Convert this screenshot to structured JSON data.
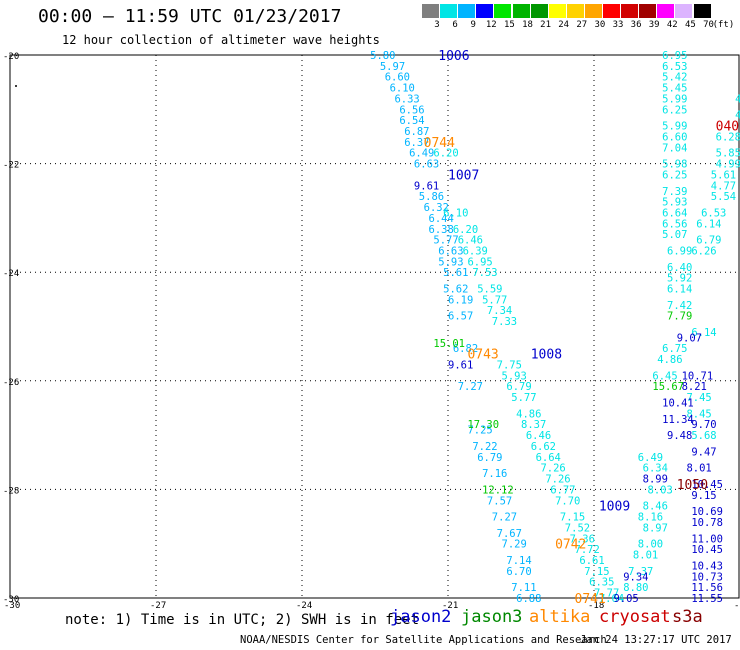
{
  "header": {
    "title": "00:00 – 11:59 UTC 01/23/2017",
    "subtitle": "12 hour collection of altimeter wave heights"
  },
  "colorbar": {
    "labels": [
      "3",
      "6",
      "9",
      "12",
      "15",
      "18",
      "21",
      "24",
      "27",
      "30",
      "33",
      "36",
      "39",
      "42",
      "45",
      "70"
    ],
    "unit": "(ft)",
    "colors": [
      "#7f7f7f",
      "#00e5e5",
      "#00b4ff",
      "#0000ff",
      "#00e600",
      "#00b400",
      "#009600",
      "#ffff00",
      "#ffd200",
      "#ffa500",
      "#ff0000",
      "#d20000",
      "#a00000",
      "#ff00ff",
      "#dcb4ff",
      "#000000"
    ]
  },
  "map": {
    "lat_labels": [
      "-20",
      "-22",
      "-24",
      "-26",
      "-28",
      "-30"
    ],
    "lon_labels": [
      "-30",
      "-27",
      "-24",
      "-21",
      "-18",
      "-15"
    ],
    "track_colors": {
      "jason2": "#0000cc",
      "jason3": "#008800",
      "altika": "#ff8800",
      "cryosat": "#cc0000",
      "s3a": "#880000"
    },
    "time_labels": [
      {
        "text": "1006",
        "sat": "jason2",
        "lon": -21.2,
        "lat": -20.0
      },
      {
        "text": "0744",
        "sat": "altika",
        "lon": -21.5,
        "lat": -21.6
      },
      {
        "text": "1007",
        "sat": "jason2",
        "lon": -21.0,
        "lat": -22.2
      },
      {
        "text": "0743",
        "sat": "altika",
        "lon": -20.6,
        "lat": -25.5
      },
      {
        "text": "1008",
        "sat": "jason2",
        "lon": -19.3,
        "lat": -25.5
      },
      {
        "text": "1009",
        "sat": "jason2",
        "lon": -17.9,
        "lat": -28.3
      },
      {
        "text": "0742",
        "sat": "altika",
        "lon": -18.8,
        "lat": -29.0
      },
      {
        "text": "0741",
        "sat": "altika",
        "lon": -18.4,
        "lat": -30.0
      },
      {
        "text": "0409",
        "sat": "cryosat",
        "lon": -15.5,
        "lat": -21.3
      },
      {
        "text": "1040",
        "sat": "s3a",
        "lon": -15.0,
        "lat": -24.0
      },
      {
        "text": "0408",
        "sat": "cryosat",
        "lon": -15.0,
        "lat": -25.3
      },
      {
        "text": "1050",
        "sat": "s3a",
        "lon": -16.3,
        "lat": -27.9
      }
    ],
    "value_groups": [
      {
        "color": "#00b4ff",
        "points": [
          {
            "v": "5.80",
            "lon": -22.6,
            "lat": -20.0
          },
          {
            "v": "5.97",
            "lon": -22.4,
            "lat": -20.2
          },
          {
            "v": "6.60",
            "lon": -22.3,
            "lat": -20.4
          },
          {
            "v": "6.10",
            "lon": -22.2,
            "lat": -20.6
          },
          {
            "v": "6.33",
            "lon": -22.1,
            "lat": -20.8
          },
          {
            "v": "6.56",
            "lon": -22.0,
            "lat": -21.0
          },
          {
            "v": "6.54",
            "lon": -22.0,
            "lat": -21.2
          },
          {
            "v": "6.87",
            "lon": -21.9,
            "lat": -21.4
          },
          {
            "v": "6.37",
            "lon": -21.9,
            "lat": -21.6
          },
          {
            "v": "6.49",
            "lon": -21.8,
            "lat": -21.8
          },
          {
            "v": "6.63",
            "lon": -21.7,
            "lat": -22.0
          },
          {
            "v": "5.86",
            "lon": -21.6,
            "lat": -22.6
          },
          {
            "v": "6.32",
            "lon": -21.5,
            "lat": -22.8
          },
          {
            "v": "6.44",
            "lon": -21.4,
            "lat": -23.0
          },
          {
            "v": "6.38",
            "lon": -21.4,
            "lat": -23.2
          },
          {
            "v": "5.77",
            "lon": -21.3,
            "lat": -23.4
          },
          {
            "v": "6.63",
            "lon": -21.2,
            "lat": -23.6
          },
          {
            "v": "5.93",
            "lon": -21.2,
            "lat": -23.8
          },
          {
            "v": "5.61",
            "lon": -21.1,
            "lat": -24.0
          },
          {
            "v": "5.62",
            "lon": -21.1,
            "lat": -24.3
          },
          {
            "v": "6.19",
            "lon": -21.0,
            "lat": -24.5
          },
          {
            "v": "6.57",
            "lon": -21.0,
            "lat": -24.8
          },
          {
            "v": "6.82",
            "lon": -20.9,
            "lat": -25.4
          },
          {
            "v": "7.27",
            "lon": -20.8,
            "lat": -26.1
          },
          {
            "v": "7.25",
            "lon": -20.6,
            "lat": -26.9
          },
          {
            "v": "7.22",
            "lon": -20.5,
            "lat": -27.2
          },
          {
            "v": "6.79",
            "lon": -20.4,
            "lat": -27.4
          },
          {
            "v": "7.16",
            "lon": -20.3,
            "lat": -27.7
          },
          {
            "v": "7.57",
            "lon": -20.2,
            "lat": -28.2
          },
          {
            "v": "7.27",
            "lon": -20.1,
            "lat": -28.5
          },
          {
            "v": "7.67",
            "lon": -20.0,
            "lat": -28.8
          },
          {
            "v": "7.29",
            "lon": -19.9,
            "lat": -29.0
          },
          {
            "v": "7.14",
            "lon": -19.8,
            "lat": -29.3
          },
          {
            "v": "6.70",
            "lon": -19.8,
            "lat": -29.5
          },
          {
            "v": "7.11",
            "lon": -19.7,
            "lat": -29.8
          },
          {
            "v": "6.88",
            "lon": -19.6,
            "lat": -30.0
          }
        ]
      },
      {
        "color": "#00e5e5",
        "points": [
          {
            "v": "6.20",
            "lon": -21.3,
            "lat": -21.8
          },
          {
            "v": "6.10",
            "lon": -21.1,
            "lat": -22.9
          },
          {
            "v": "6.20",
            "lon": -20.9,
            "lat": -23.2
          },
          {
            "v": "6.46",
            "lon": -20.8,
            "lat": -23.4
          },
          {
            "v": "6.39",
            "lon": -20.7,
            "lat": -23.6
          },
          {
            "v": "6.95",
            "lon": -20.6,
            "lat": -23.8
          },
          {
            "v": "7.53",
            "lon": -20.5,
            "lat": -24.0
          },
          {
            "v": "5.59",
            "lon": -20.4,
            "lat": -24.3
          },
          {
            "v": "5.77",
            "lon": -20.3,
            "lat": -24.5
          },
          {
            "v": "7.34",
            "lon": -20.2,
            "lat": -24.7
          },
          {
            "v": "7.33",
            "lon": -20.1,
            "lat": -24.9
          },
          {
            "v": "7.75",
            "lon": -20.0,
            "lat": -25.7
          },
          {
            "v": "5.93",
            "lon": -19.9,
            "lat": -25.9
          },
          {
            "v": "6.79",
            "lon": -19.8,
            "lat": -26.1
          },
          {
            "v": "5.77",
            "lon": -19.7,
            "lat": -26.3
          },
          {
            "v": "4.86",
            "lon": -19.6,
            "lat": -26.6
          },
          {
            "v": "8.37",
            "lon": -19.5,
            "lat": -26.8
          },
          {
            "v": "6.46",
            "lon": -19.4,
            "lat": -27.0
          },
          {
            "v": "6.62",
            "lon": -19.3,
            "lat": -27.2
          },
          {
            "v": "6.64",
            "lon": -19.2,
            "lat": -27.4
          },
          {
            "v": "7.26",
            "lon": -19.1,
            "lat": -27.6
          },
          {
            "v": "7.26",
            "lon": -19.0,
            "lat": -27.8
          },
          {
            "v": "6.77",
            "lon": -18.9,
            "lat": -28.0
          },
          {
            "v": "7.70",
            "lon": -18.8,
            "lat": -28.2
          },
          {
            "v": "7.15",
            "lon": -18.7,
            "lat": -28.5
          },
          {
            "v": "7.52",
            "lon": -18.6,
            "lat": -28.7
          },
          {
            "v": "7.36",
            "lon": -18.5,
            "lat": -28.9
          },
          {
            "v": "7.72",
            "lon": -18.4,
            "lat": -29.1
          },
          {
            "v": "6.61",
            "lon": -18.3,
            "lat": -29.3
          },
          {
            "v": "7.15",
            "lon": -18.2,
            "lat": -29.5
          },
          {
            "v": "6.35",
            "lon": -18.1,
            "lat": -29.7
          },
          {
            "v": "7.77",
            "lon": -18.0,
            "lat": -29.9
          },
          {
            "v": "7.64",
            "lon": -17.9,
            "lat": -30.0
          },
          {
            "v": "6.95",
            "lon": -16.6,
            "lat": -20.0
          },
          {
            "v": "6.53",
            "lon": -16.6,
            "lat": -20.2
          },
          {
            "v": "5.42",
            "lon": -16.6,
            "lat": -20.4
          },
          {
            "v": "5.45",
            "lon": -16.6,
            "lat": -20.6
          },
          {
            "v": "5.99",
            "lon": -16.6,
            "lat": -20.8
          },
          {
            "v": "6.25",
            "lon": -16.6,
            "lat": -21.0
          },
          {
            "v": "5.99",
            "lon": -16.6,
            "lat": -21.3
          },
          {
            "v": "6.60",
            "lon": -16.6,
            "lat": -21.5
          },
          {
            "v": "7.04",
            "lon": -16.6,
            "lat": -21.7
          },
          {
            "v": "5.98",
            "lon": -16.6,
            "lat": -22.0
          },
          {
            "v": "6.25",
            "lon": -16.6,
            "lat": -22.2
          },
          {
            "v": "7.39",
            "lon": -16.6,
            "lat": -22.5
          },
          {
            "v": "5.93",
            "lon": -16.6,
            "lat": -22.7
          },
          {
            "v": "6.64",
            "lon": -16.6,
            "lat": -22.9
          },
          {
            "v": "6.56",
            "lon": -16.6,
            "lat": -23.1
          },
          {
            "v": "5.07",
            "lon": -16.6,
            "lat": -23.3
          },
          {
            "v": "6.99",
            "lon": -16.5,
            "lat": -23.6
          },
          {
            "v": "6.40",
            "lon": -16.5,
            "lat": -23.9
          },
          {
            "v": "5.92",
            "lon": -16.5,
            "lat": -24.1
          },
          {
            "v": "6.14",
            "lon": -16.5,
            "lat": -24.3
          },
          {
            "v": "7.42",
            "lon": -16.5,
            "lat": -24.6
          },
          {
            "v": "6.75",
            "lon": -16.6,
            "lat": -25.4
          },
          {
            "v": "4.86",
            "lon": -16.7,
            "lat": -25.6
          },
          {
            "v": "6.45",
            "lon": -16.8,
            "lat": -25.9
          },
          {
            "v": "6.34",
            "lon": -17.0,
            "lat": -27.6
          },
          {
            "v": "6.49",
            "lon": -17.1,
            "lat": -27.4
          },
          {
            "v": "8.03",
            "lon": -16.9,
            "lat": -28.0
          },
          {
            "v": "8.46",
            "lon": -17.0,
            "lat": -28.3
          },
          {
            "v": "8.16",
            "lon": -17.1,
            "lat": -28.5
          },
          {
            "v": "8.97",
            "lon": -17.0,
            "lat": -28.7
          },
          {
            "v": "8.00",
            "lon": -17.1,
            "lat": -29.0
          },
          {
            "v": "8.01",
            "lon": -17.2,
            "lat": -29.2
          },
          {
            "v": "7.37",
            "lon": -17.3,
            "lat": -29.5
          },
          {
            "v": "8.80",
            "lon": -17.4,
            "lat": -29.8
          },
          {
            "v": "6.28",
            "lon": -15.5,
            "lat": -21.5
          },
          {
            "v": "5.85",
            "lon": -15.5,
            "lat": -21.8
          },
          {
            "v": "4.99",
            "lon": -15.5,
            "lat": -22.0
          },
          {
            "v": "5.61",
            "lon": -15.6,
            "lat": -22.2
          },
          {
            "v": "4.77",
            "lon": -15.6,
            "lat": -22.4
          },
          {
            "v": "5.54",
            "lon": -15.6,
            "lat": -22.6
          },
          {
            "v": "6.53",
            "lon": -15.8,
            "lat": -22.9
          },
          {
            "v": "6.14",
            "lon": -15.9,
            "lat": -23.1
          },
          {
            "v": "6.79",
            "lon": -15.9,
            "lat": -23.4
          },
          {
            "v": "6.26",
            "lon": -16.0,
            "lat": -23.6
          },
          {
            "v": "6.14",
            "lon": -16.0,
            "lat": -25.1
          },
          {
            "v": "7.45",
            "lon": -16.1,
            "lat": -26.3
          },
          {
            "v": "8.45",
            "lon": -16.1,
            "lat": -26.6
          },
          {
            "v": "5.68",
            "lon": -16.0,
            "lat": -27.0
          },
          {
            "v": "4.57",
            "lon": -15.1,
            "lat": -21.1
          },
          {
            "v": "4.32",
            "lon": -15.1,
            "lat": -20.8
          }
        ]
      },
      {
        "color": "#0000cc",
        "points": [
          {
            "v": "9.61",
            "lon": -21.7,
            "lat": -22.4
          },
          {
            "v": "9.61",
            "lon": -21.0,
            "lat": -25.7
          },
          {
            "v": "9.07",
            "lon": -16.3,
            "lat": -25.2
          },
          {
            "v": "10.71",
            "lon": -16.2,
            "lat": -25.9
          },
          {
            "v": "10.41",
            "lon": -16.6,
            "lat": -26.4
          },
          {
            "v": "11.34",
            "lon": -16.6,
            "lat": -26.7
          },
          {
            "v": "9.48",
            "lon": -16.5,
            "lat": -27.0
          },
          {
            "v": "9.70",
            "lon": -16.0,
            "lat": -26.8
          },
          {
            "v": "9.47",
            "lon": -16.0,
            "lat": -27.3
          },
          {
            "v": "8.99",
            "lon": -17.0,
            "lat": -27.8
          },
          {
            "v": "10.45",
            "lon": -16.0,
            "lat": -27.9
          },
          {
            "v": "9.15",
            "lon": -16.0,
            "lat": -28.1
          },
          {
            "v": "10.69",
            "lon": -16.0,
            "lat": -28.4
          },
          {
            "v": "10.78",
            "lon": -16.0,
            "lat": -28.6
          },
          {
            "v": "11.00",
            "lon": -16.0,
            "lat": -28.9
          },
          {
            "v": "10.45",
            "lon": -16.0,
            "lat": -29.1
          },
          {
            "v": "10.43",
            "lon": -16.0,
            "lat": -29.4
          },
          {
            "v": "10.73",
            "lon": -16.0,
            "lat": -29.6
          },
          {
            "v": "11.56",
            "lon": -16.0,
            "lat": -29.8
          },
          {
            "v": "11.55",
            "lon": -16.0,
            "lat": -30.0
          },
          {
            "v": "9.34",
            "lon": -17.4,
            "lat": -29.6
          },
          {
            "v": "9.05",
            "lon": -17.6,
            "lat": -30.0
          },
          {
            "v": "8.21",
            "lon": -16.2,
            "lat": -26.1
          },
          {
            "v": "8.01",
            "lon": -16.1,
            "lat": -27.6
          }
        ]
      },
      {
        "color": "#00c800",
        "points": [
          {
            "v": "15.01",
            "lon": -21.3,
            "lat": -25.3
          },
          {
            "v": "17.30",
            "lon": -20.6,
            "lat": -26.8
          },
          {
            "v": "12.12",
            "lon": -20.3,
            "lat": -28.0
          },
          {
            "v": "15.67",
            "lon": -16.8,
            "lat": -26.1
          },
          {
            "v": "7.79",
            "lon": -16.5,
            "lat": -24.8
          }
        ]
      }
    ]
  },
  "legend": {
    "note": "note: 1) Time is in UTC; 2) SWH is in feet",
    "jason2": "jason2",
    "jason3": "jason3",
    "altika": "altika",
    "cryosat": "cryosat",
    "s3a": "s3a"
  },
  "footer": {
    "credit": "NOAA/NESDIS Center for Satellite Applications and Research",
    "timestamp": "Jan 24 13:27:17 UTC 2017"
  }
}
